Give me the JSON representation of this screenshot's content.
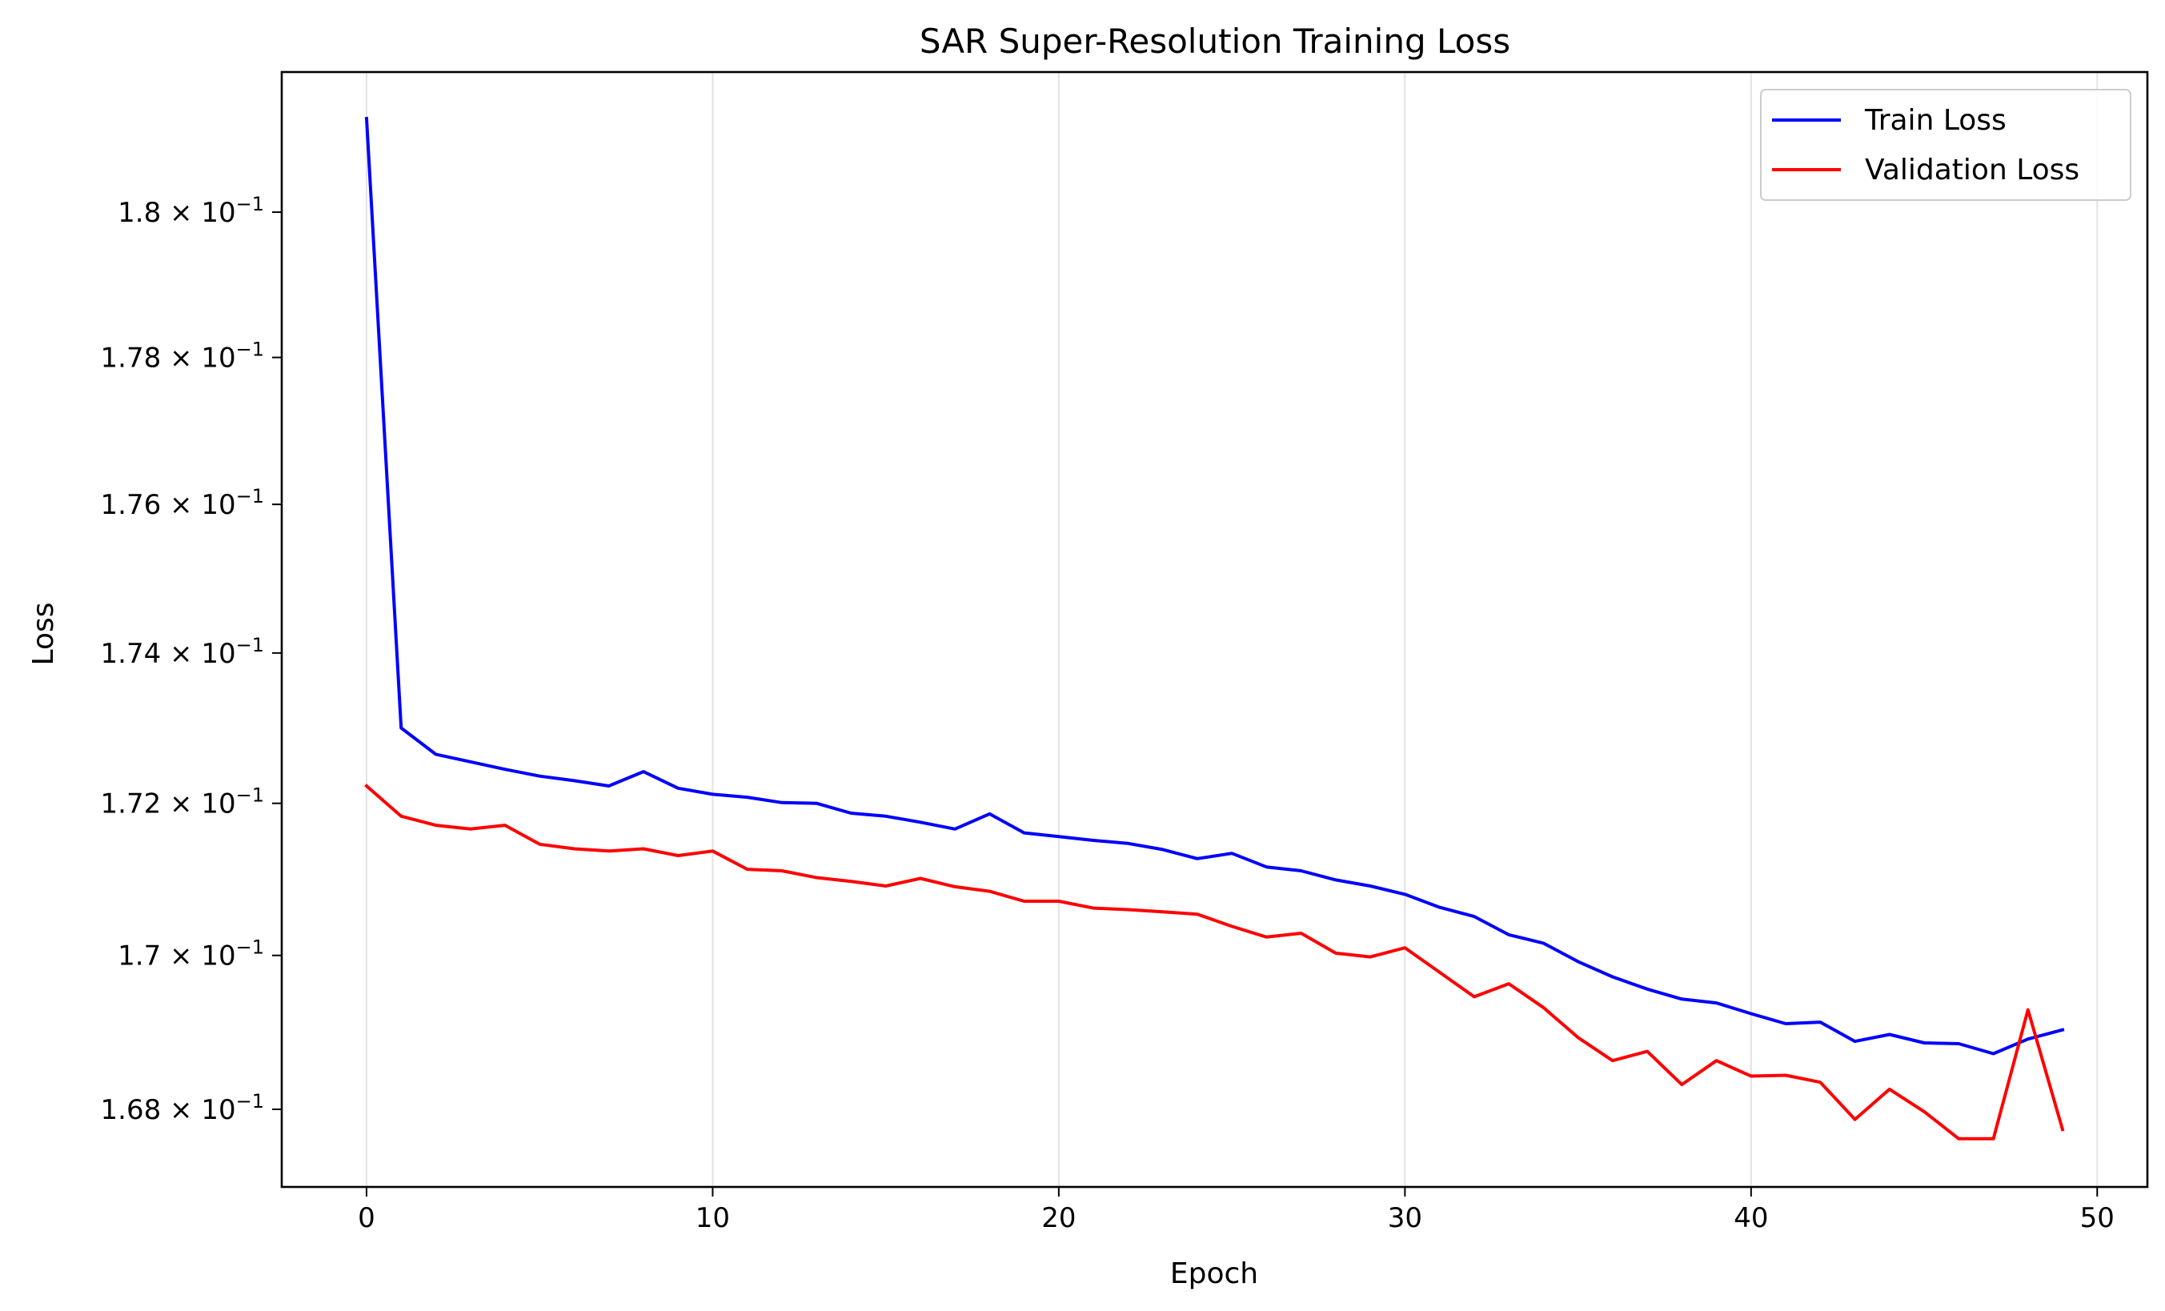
{
  "chart_data": {
    "type": "line",
    "title": "SAR Super-Resolution Training Loss",
    "xlabel": "Epoch",
    "ylabel": "Loss",
    "yscale": "log",
    "grid": "x-axis only",
    "legend_position": "top-right",
    "xlim": [
      -2.45,
      51.45
    ],
    "ylim": [
      0.167,
      0.18195
    ],
    "x_ticks": [
      {
        "value": 0,
        "label": "0"
      },
      {
        "value": 10,
        "label": "10"
      },
      {
        "value": 20,
        "label": "20"
      },
      {
        "value": 30,
        "label": "30"
      },
      {
        "value": 40,
        "label": "40"
      },
      {
        "value": 50,
        "label": "50"
      }
    ],
    "y_ticks": [
      {
        "value": 0.168,
        "mantissa": "1.68",
        "base": "10",
        "exponent": "−1"
      },
      {
        "value": 0.17,
        "mantissa": "1.7",
        "base": "10",
        "exponent": "−1"
      },
      {
        "value": 0.172,
        "mantissa": "1.72",
        "base": "10",
        "exponent": "−1"
      },
      {
        "value": 0.174,
        "mantissa": "1.74",
        "base": "10",
        "exponent": "−1"
      },
      {
        "value": 0.176,
        "mantissa": "1.76",
        "base": "10",
        "exponent": "−1"
      },
      {
        "value": 0.178,
        "mantissa": "1.78",
        "base": "10",
        "exponent": "−1"
      },
      {
        "value": 0.18,
        "mantissa": "1.8",
        "base": "10",
        "exponent": "−1"
      }
    ],
    "x": [
      0,
      1,
      2,
      3,
      4,
      5,
      6,
      7,
      8,
      9,
      10,
      11,
      12,
      13,
      14,
      15,
      16,
      17,
      18,
      19,
      20,
      21,
      22,
      23,
      24,
      25,
      26,
      27,
      28,
      29,
      30,
      31,
      32,
      33,
      34,
      35,
      36,
      37,
      38,
      39,
      40,
      41,
      42,
      43,
      44,
      45,
      46,
      47,
      48,
      49
    ],
    "series": [
      {
        "name": "Train Loss",
        "color": "#0000ff",
        "values": [
          0.1813,
          0.173,
          0.17265,
          0.17255,
          0.17245,
          0.17236,
          0.1723,
          0.17223,
          0.17242,
          0.1722,
          0.17212,
          0.17208,
          0.17201,
          0.172,
          0.17187,
          0.17183,
          0.17175,
          0.17166,
          0.17186,
          0.17161,
          0.17156,
          0.17151,
          0.17147,
          0.17139,
          0.17127,
          0.17134,
          0.17116,
          0.17111,
          0.17099,
          0.17091,
          0.1708,
          0.17063,
          0.17051,
          0.17027,
          0.17016,
          0.16992,
          0.16972,
          0.16956,
          0.16943,
          0.16938,
          0.16924,
          0.16911,
          0.16913,
          0.16888,
          0.16897,
          0.16886,
          0.16885,
          0.16872,
          0.16891,
          0.16903
        ]
      },
      {
        "name": "Validation Loss",
        "color": "#ff0000",
        "values": [
          0.17223,
          0.17183,
          0.17171,
          0.17166,
          0.17171,
          0.17146,
          0.1714,
          0.17137,
          0.1714,
          0.17131,
          0.17137,
          0.17113,
          0.17111,
          0.17102,
          0.17097,
          0.17091,
          0.17101,
          0.1709,
          0.17084,
          0.17071,
          0.17071,
          0.17062,
          0.1706,
          0.17057,
          0.17054,
          0.17038,
          0.17024,
          0.17029,
          0.17003,
          0.16998,
          0.1701,
          0.16978,
          0.16946,
          0.16963,
          0.16932,
          0.16893,
          0.16863,
          0.16875,
          0.16832,
          0.16863,
          0.16843,
          0.16844,
          0.16835,
          0.16787,
          0.16826,
          0.16797,
          0.16762,
          0.16762,
          0.16929,
          0.16774
        ]
      }
    ]
  }
}
